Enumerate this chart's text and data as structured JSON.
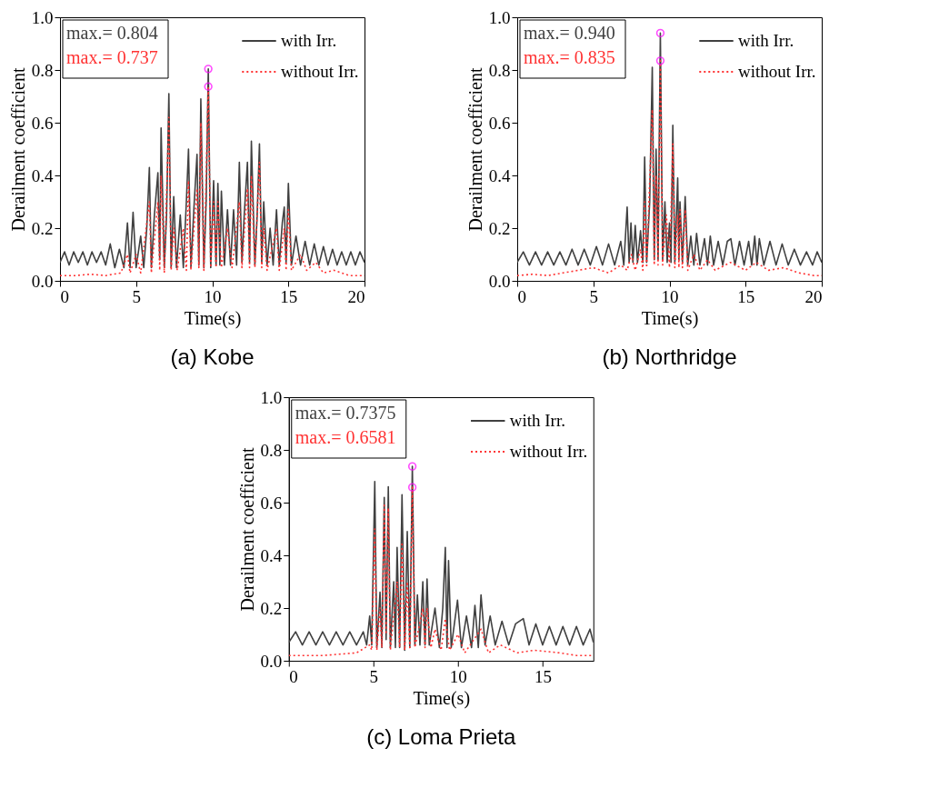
{
  "chart_data": [
    {
      "type": "line",
      "title": "(a) Kobe",
      "xlabel": "Time(s)",
      "ylabel": "Derailment coefficient",
      "xlim": [
        0,
        20
      ],
      "xticks": [
        0,
        5,
        10,
        15,
        20
      ],
      "ylim": [
        0,
        1
      ],
      "yticks": [
        {
          "value": 0,
          "label": "0.0"
        },
        {
          "value": 0.2,
          "label": "0.2"
        },
        {
          "value": 0.4,
          "label": "0.4"
        },
        {
          "value": 0.6,
          "label": "0.6"
        },
        {
          "value": 0.8,
          "label": "0.8"
        },
        {
          "value": 1,
          "label": "1.0"
        }
      ],
      "legend": "top right",
      "grid": false,
      "annotations": [
        "max.= 0.804",
        "max.= 0.737"
      ],
      "series": [
        {
          "name": "with Irr.",
          "color": "#404040",
          "line_style": "solid",
          "x": [
            0,
            0.3,
            0.6,
            0.9,
            1.2,
            1.5,
            1.8,
            2.1,
            2.4,
            2.7,
            3.0,
            3.3,
            3.6,
            3.9,
            4.2,
            4.43,
            4.6,
            4.8,
            5.0,
            5.3,
            5.5,
            5.7,
            5.87,
            6.0,
            6.2,
            6.43,
            6.55,
            6.64,
            6.85,
            7.0,
            7.15,
            7.3,
            7.47,
            7.65,
            7.9,
            8.1,
            8.3,
            8.44,
            8.6,
            8.8,
            9.0,
            9.12,
            9.25,
            9.45,
            9.6,
            9.74,
            9.9,
            10.09,
            10.25,
            10.37,
            10.5,
            10.6,
            10.8,
            11.0,
            11.2,
            11.4,
            11.6,
            11.78,
            11.95,
            12.1,
            12.31,
            12.45,
            12.57,
            12.8,
            12.95,
            13.1,
            13.25,
            13.38,
            13.6,
            13.8,
            14.0,
            14.22,
            14.4,
            14.6,
            14.73,
            14.85,
            15.0,
            15.2,
            15.5,
            15.8,
            16.1,
            16.4,
            16.7,
            17.0,
            17.3,
            17.6,
            17.9,
            18.2,
            18.5,
            18.8,
            19.1,
            19.4,
            19.7,
            20
          ],
          "values": [
            0.07,
            0.11,
            0.06,
            0.11,
            0.07,
            0.11,
            0.06,
            0.11,
            0.07,
            0.11,
            0.06,
            0.14,
            0.05,
            0.12,
            0.05,
            0.22,
            0.05,
            0.26,
            0.05,
            0.17,
            0.05,
            0.2,
            0.43,
            0.05,
            0.25,
            0.41,
            0.08,
            0.58,
            0.05,
            0.25,
            0.71,
            0.05,
            0.32,
            0.05,
            0.25,
            0.05,
            0.3,
            0.5,
            0.05,
            0.28,
            0.48,
            0.06,
            0.69,
            0.05,
            0.3,
            0.804,
            0.05,
            0.38,
            0.06,
            0.37,
            0.06,
            0.34,
            0.06,
            0.27,
            0.06,
            0.27,
            0.06,
            0.45,
            0.07,
            0.25,
            0.45,
            0.07,
            0.53,
            0.06,
            0.25,
            0.52,
            0.07,
            0.3,
            0.06,
            0.2,
            0.06,
            0.27,
            0.06,
            0.22,
            0.28,
            0.07,
            0.37,
            0.06,
            0.17,
            0.06,
            0.15,
            0.06,
            0.14,
            0.06,
            0.13,
            0.06,
            0.12,
            0.06,
            0.11,
            0.06,
            0.11,
            0.06,
            0.11,
            0.07
          ]
        },
        {
          "name": "without Irr.",
          "color": "#ff3333",
          "line_style": "dotted",
          "x": [
            0,
            1,
            2,
            3,
            4,
            4.43,
            4.6,
            5.0,
            5.3,
            5.87,
            6.0,
            6.43,
            6.55,
            6.64,
            6.85,
            7.15,
            7.3,
            7.47,
            7.7,
            8.1,
            8.3,
            8.44,
            8.6,
            9.0,
            9.12,
            9.25,
            9.45,
            9.74,
            9.9,
            10.09,
            10.25,
            10.37,
            10.6,
            11.0,
            11.3,
            11.78,
            11.95,
            12.31,
            12.45,
            12.57,
            12.8,
            13.1,
            13.25,
            13.38,
            13.6,
            14.22,
            14.4,
            14.73,
            14.85,
            15.0,
            15.2,
            15.8,
            16.2,
            16.8,
            17.3,
            18,
            19,
            20
          ],
          "values": [
            0.02,
            0.02,
            0.025,
            0.02,
            0.03,
            0.1,
            0.03,
            0.1,
            0.03,
            0.3,
            0.03,
            0.3,
            0.04,
            0.4,
            0.03,
            0.62,
            0.04,
            0.2,
            0.04,
            0.2,
            0.04,
            0.38,
            0.04,
            0.35,
            0.05,
            0.6,
            0.04,
            0.737,
            0.05,
            0.3,
            0.05,
            0.3,
            0.05,
            0.2,
            0.05,
            0.3,
            0.05,
            0.35,
            0.05,
            0.4,
            0.05,
            0.45,
            0.05,
            0.2,
            0.04,
            0.2,
            0.04,
            0.2,
            0.04,
            0.27,
            0.04,
            0.1,
            0.04,
            0.07,
            0.03,
            0.04,
            0.02,
            0.02
          ]
        },
        {
          "type": "scatter",
          "color": "#ff00ff",
          "marker": "circle",
          "x": [
            9.74,
            9.74
          ],
          "values": [
            0.804,
            0.737
          ]
        }
      ]
    },
    {
      "type": "line",
      "title": "(b) Northridge",
      "xlabel": "Time(s)",
      "ylabel": "Derailment coefficient",
      "xlim": [
        0,
        20
      ],
      "xticks": [
        0,
        5,
        10,
        15,
        20
      ],
      "ylim": [
        0,
        1
      ],
      "yticks": [
        {
          "value": 0,
          "label": "0.0"
        },
        {
          "value": 0.2,
          "label": "0.2"
        },
        {
          "value": 0.4,
          "label": "0.4"
        },
        {
          "value": 0.6,
          "label": "0.6"
        },
        {
          "value": 0.8,
          "label": "0.8"
        },
        {
          "value": 1,
          "label": "1.0"
        }
      ],
      "legend": "top right",
      "grid": false,
      "annotations": [
        "max.= 0.940",
        "max.= 0.835"
      ],
      "series": [
        {
          "name": "with Irr.",
          "color": "#404040",
          "line_style": "solid",
          "x": [
            0,
            0.4,
            0.8,
            1.2,
            1.6,
            2.0,
            2.4,
            2.8,
            3.2,
            3.6,
            4.0,
            4.4,
            4.8,
            5.2,
            5.6,
            6.0,
            6.4,
            6.8,
            7.0,
            7.22,
            7.35,
            7.47,
            7.6,
            7.75,
            7.9,
            8.1,
            8.25,
            8.37,
            8.5,
            8.7,
            8.87,
            9.0,
            9.12,
            9.25,
            9.4,
            9.55,
            9.7,
            9.85,
            10.0,
            10.1,
            10.22,
            10.35,
            10.54,
            10.62,
            10.69,
            10.85,
            11.03,
            11.2,
            11.4,
            11.6,
            11.78,
            12.0,
            12.3,
            12.5,
            12.68,
            12.9,
            13.2,
            13.5,
            13.8,
            14.03,
            14.3,
            14.6,
            14.9,
            15.2,
            15.4,
            15.6,
            15.75,
            15.9,
            16.2,
            16.6,
            17.0,
            17.4,
            17.8,
            18.2,
            18.6,
            19.0,
            19.4,
            19.7,
            20
          ],
          "values": [
            0.07,
            0.11,
            0.06,
            0.11,
            0.06,
            0.11,
            0.06,
            0.11,
            0.06,
            0.12,
            0.06,
            0.12,
            0.06,
            0.13,
            0.06,
            0.14,
            0.06,
            0.15,
            0.06,
            0.28,
            0.07,
            0.22,
            0.07,
            0.21,
            0.07,
            0.19,
            0.07,
            0.47,
            0.07,
            0.3,
            0.81,
            0.08,
            0.5,
            0.08,
            0.94,
            0.08,
            0.3,
            0.07,
            0.22,
            0.07,
            0.59,
            0.07,
            0.39,
            0.08,
            0.3,
            0.07,
            0.32,
            0.06,
            0.17,
            0.06,
            0.18,
            0.06,
            0.16,
            0.06,
            0.17,
            0.06,
            0.15,
            0.06,
            0.15,
            0.16,
            0.06,
            0.15,
            0.06,
            0.15,
            0.06,
            0.17,
            0.06,
            0.16,
            0.06,
            0.15,
            0.06,
            0.14,
            0.06,
            0.12,
            0.06,
            0.11,
            0.06,
            0.11,
            0.07
          ]
        },
        {
          "name": "without Irr.",
          "color": "#ff3333",
          "line_style": "dotted",
          "x": [
            0,
            1,
            2,
            3,
            4,
            5,
            6,
            6.8,
            7.22,
            7.5,
            7.75,
            8.1,
            8.25,
            8.37,
            8.5,
            8.87,
            9.0,
            9.12,
            9.25,
            9.4,
            9.55,
            9.8,
            10.0,
            10.22,
            10.35,
            10.54,
            10.62,
            10.69,
            10.85,
            11.03,
            11.2,
            11.6,
            12,
            12.5,
            13,
            14,
            15,
            15.7,
            16.5,
            17.5,
            18.5,
            19.5,
            20
          ],
          "values": [
            0.02,
            0.025,
            0.02,
            0.03,
            0.04,
            0.05,
            0.03,
            0.06,
            0.04,
            0.1,
            0.04,
            0.12,
            0.04,
            0.3,
            0.05,
            0.65,
            0.06,
            0.4,
            0.06,
            0.835,
            0.06,
            0.25,
            0.05,
            0.52,
            0.05,
            0.25,
            0.05,
            0.27,
            0.05,
            0.27,
            0.04,
            0.1,
            0.04,
            0.08,
            0.04,
            0.07,
            0.04,
            0.07,
            0.04,
            0.05,
            0.03,
            0.02,
            0.02
          ]
        },
        {
          "type": "scatter",
          "color": "#ff00ff",
          "marker": "circle",
          "x": [
            9.4,
            9.4
          ],
          "values": [
            0.94,
            0.835
          ]
        }
      ]
    },
    {
      "type": "line",
      "title": "(c) Loma Prieta",
      "xlabel": "Time(s)",
      "ylabel": "Derailment coefficient",
      "xlim": [
        0,
        18
      ],
      "xticks": [
        0,
        5,
        10,
        15
      ],
      "ylim": [
        0,
        1
      ],
      "yticks": [
        {
          "value": 0,
          "label": "0.0"
        },
        {
          "value": 0.2,
          "label": "0.2"
        },
        {
          "value": 0.4,
          "label": "0.4"
        },
        {
          "value": 0.6,
          "label": "0.6"
        },
        {
          "value": 0.8,
          "label": "0.8"
        },
        {
          "value": 1,
          "label": "1.0"
        }
      ],
      "legend": "top right",
      "grid": false,
      "annotations": [
        "max.= 0.7375",
        "max.= 0.6581"
      ],
      "series": [
        {
          "name": "with Irr.",
          "color": "#404040",
          "line_style": "solid",
          "x": [
            0,
            0.4,
            0.8,
            1.2,
            1.6,
            2.0,
            2.4,
            2.8,
            3.2,
            3.6,
            4.0,
            4.4,
            4.6,
            4.78,
            4.9,
            5.08,
            5.2,
            5.39,
            5.5,
            5.64,
            5.75,
            5.88,
            6.0,
            6.2,
            6.3,
            6.4,
            6.55,
            6.69,
            6.85,
            7.0,
            7.15,
            7.3,
            7.45,
            7.6,
            7.75,
            7.92,
            8.05,
            8.17,
            8.3,
            8.64,
            8.9,
            9.1,
            9.25,
            9.35,
            9.44,
            9.6,
            9.97,
            10.2,
            10.5,
            10.8,
            11.0,
            11.2,
            11.36,
            11.6,
            11.9,
            12.2,
            12.6,
            13.0,
            13.4,
            13.86,
            14.2,
            14.6,
            15.0,
            15.4,
            15.8,
            16.2,
            16.6,
            17.0,
            17.4,
            17.8,
            18
          ],
          "values": [
            0.07,
            0.11,
            0.06,
            0.11,
            0.06,
            0.11,
            0.06,
            0.11,
            0.06,
            0.11,
            0.06,
            0.11,
            0.06,
            0.17,
            0.06,
            0.68,
            0.05,
            0.26,
            0.05,
            0.62,
            0.08,
            0.66,
            0.05,
            0.3,
            0.05,
            0.43,
            0.05,
            0.63,
            0.04,
            0.49,
            0.05,
            0.7375,
            0.06,
            0.25,
            0.06,
            0.3,
            0.06,
            0.31,
            0.06,
            0.2,
            0.05,
            0.2,
            0.43,
            0.05,
            0.38,
            0.05,
            0.23,
            0.05,
            0.17,
            0.05,
            0.21,
            0.05,
            0.25,
            0.06,
            0.17,
            0.06,
            0.15,
            0.06,
            0.14,
            0.16,
            0.06,
            0.14,
            0.06,
            0.13,
            0.06,
            0.13,
            0.06,
            0.13,
            0.06,
            0.12,
            0.07
          ]
        },
        {
          "name": "without Irr.",
          "color": "#ff3333",
          "line_style": "dotted",
          "x": [
            0,
            1,
            2,
            3,
            4,
            4.78,
            4.9,
            5.08,
            5.2,
            5.39,
            5.5,
            5.64,
            5.75,
            5.88,
            6.0,
            6.4,
            6.55,
            6.69,
            6.85,
            7.0,
            7.15,
            7.3,
            7.45,
            7.92,
            8.05,
            8.17,
            8.4,
            8.64,
            9.0,
            9.25,
            9.5,
            10,
            10.4,
            11.36,
            11.8,
            12.5,
            13.5,
            14.5,
            16,
            17,
            18
          ],
          "values": [
            0.02,
            0.02,
            0.02,
            0.025,
            0.03,
            0.06,
            0.04,
            0.5,
            0.04,
            0.2,
            0.05,
            0.59,
            0.1,
            0.58,
            0.04,
            0.3,
            0.05,
            0.45,
            0.04,
            0.3,
            0.05,
            0.6581,
            0.05,
            0.2,
            0.05,
            0.2,
            0.05,
            0.12,
            0.04,
            0.16,
            0.04,
            0.1,
            0.03,
            0.12,
            0.03,
            0.06,
            0.03,
            0.04,
            0.03,
            0.02,
            0.02
          ]
        },
        {
          "type": "scatter",
          "color": "#ff00ff",
          "marker": "circle",
          "x": [
            7.3,
            7.3
          ],
          "values": [
            0.7375,
            0.6581
          ]
        }
      ]
    }
  ]
}
